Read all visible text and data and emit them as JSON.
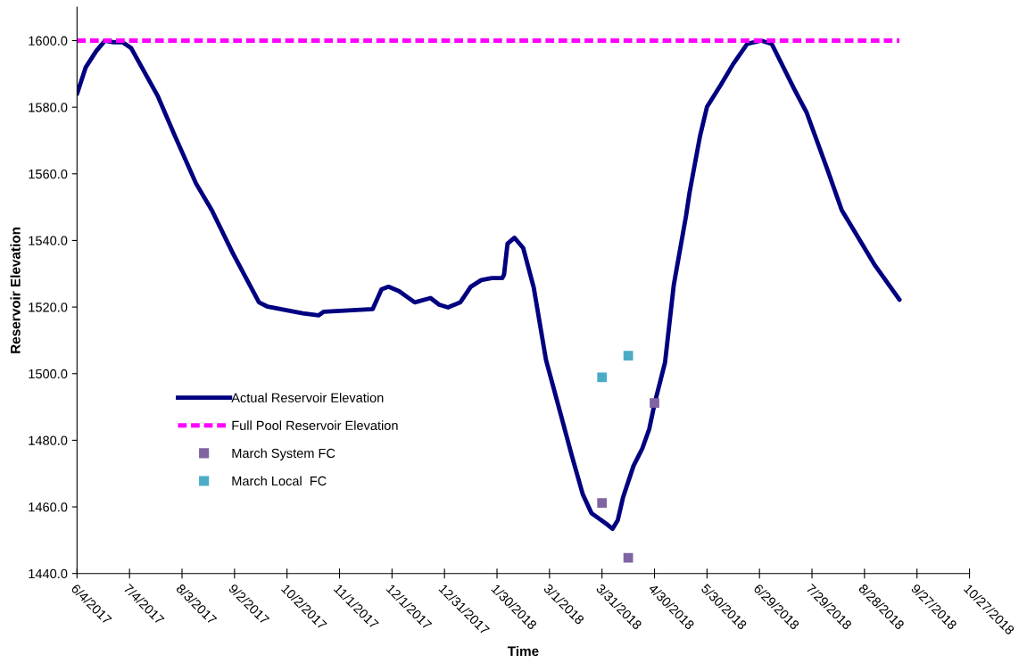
{
  "chart_data": {
    "type": "line",
    "xlabel": "Time",
    "ylabel": "Reservoir Elevation",
    "xlim": [
      "2017-06-04",
      "2018-10-27"
    ],
    "xticks": [
      {
        "value": "2017-06-04",
        "label": "6/4/2017"
      },
      {
        "value": "2017-07-04",
        "label": "7/4/2017"
      },
      {
        "value": "2017-08-03",
        "label": "8/3/2017"
      },
      {
        "value": "2017-09-02",
        "label": "9/2/2017"
      },
      {
        "value": "2017-10-02",
        "label": "10/2/2017"
      },
      {
        "value": "2017-11-01",
        "label": "11/1/2017"
      },
      {
        "value": "2017-12-01",
        "label": "12/1/2017"
      },
      {
        "value": "2017-12-31",
        "label": "12/31/2017"
      },
      {
        "value": "2018-01-30",
        "label": "1/30/2018"
      },
      {
        "value": "2018-03-01",
        "label": "3/1/2018"
      },
      {
        "value": "2018-03-31",
        "label": "3/31/2018"
      },
      {
        "value": "2018-04-30",
        "label": "4/30/2018"
      },
      {
        "value": "2018-05-30",
        "label": "5/30/2018"
      },
      {
        "value": "2018-06-29",
        "label": "6/29/2018"
      },
      {
        "value": "2018-07-29",
        "label": "7/29/2018"
      },
      {
        "value": "2018-08-28",
        "label": "8/28/2018"
      },
      {
        "value": "2018-09-27",
        "label": "9/27/2018"
      },
      {
        "value": "2018-10-27",
        "label": "10/27/2018"
      }
    ],
    "ylim": [
      1440,
      1610
    ],
    "yticks": [
      {
        "value": 1440,
        "label": "1440.0"
      },
      {
        "value": 1460,
        "label": "1460.0"
      },
      {
        "value": 1480,
        "label": "1480.0"
      },
      {
        "value": 1500,
        "label": "1500.0"
      },
      {
        "value": 1520,
        "label": "1520.0"
      },
      {
        "value": 1540,
        "label": "1540.0"
      },
      {
        "value": 1560,
        "label": "1560.0"
      },
      {
        "value": 1580,
        "label": "1580.0"
      },
      {
        "value": 1600,
        "label": "1600.0"
      }
    ],
    "grid": false,
    "legend": "lower left",
    "series": [
      {
        "name": "Actual Reservoir Elevation",
        "color": "#000080",
        "line_style": "solid",
        "marker": "none",
        "x": [
          "2017-06-04",
          "2017-06-09",
          "2017-06-15",
          "2017-06-20",
          "2017-06-25",
          "2017-06-30",
          "2017-07-05",
          "2017-07-11",
          "2017-07-20",
          "2017-07-30",
          "2017-08-11",
          "2017-08-20",
          "2017-09-01",
          "2017-09-16",
          "2017-09-21",
          "2017-10-11",
          "2017-10-20",
          "2017-10-23",
          "2017-11-20",
          "2017-11-25",
          "2017-11-29",
          "2017-12-05",
          "2017-12-14",
          "2017-12-23",
          "2017-12-28",
          "2018-01-02",
          "2018-01-09",
          "2018-01-15",
          "2018-01-21",
          "2018-01-27",
          "2018-02-02",
          "2018-02-03",
          "2018-02-05",
          "2018-02-09",
          "2018-02-14",
          "2018-02-20",
          "2018-02-27",
          "2018-03-07",
          "2018-03-14",
          "2018-03-20",
          "2018-03-25",
          "2018-04-03",
          "2018-04-06",
          "2018-04-09",
          "2018-04-12",
          "2018-04-18",
          "2018-04-23",
          "2018-04-27",
          "2018-04-30",
          "2018-05-06",
          "2018-05-11",
          "2018-05-18",
          "2018-05-20",
          "2018-05-26",
          "2018-05-30",
          "2018-06-07",
          "2018-06-14",
          "2018-06-22",
          "2018-06-30",
          "2018-07-06",
          "2018-07-19",
          "2018-07-26",
          "2018-08-07",
          "2018-08-15",
          "2018-09-03",
          "2018-09-17"
        ],
        "values": [
          1584.0,
          1592.0,
          1596.9,
          1600.0,
          1599.5,
          1599.5,
          1597.7,
          1592.0,
          1583.5,
          1571.3,
          1557.1,
          1549.1,
          1536.2,
          1521.4,
          1520.1,
          1518.1,
          1517.5,
          1518.6,
          1519.4,
          1525.3,
          1526.1,
          1524.8,
          1521.4,
          1522.7,
          1520.7,
          1519.9,
          1521.4,
          1526.1,
          1528.1,
          1528.7,
          1528.7,
          1529.7,
          1539.0,
          1540.8,
          1537.7,
          1525.8,
          1504.1,
          1488.6,
          1474.9,
          1463.8,
          1458.1,
          1454.7,
          1453.4,
          1456.0,
          1462.8,
          1472.3,
          1477.5,
          1483.4,
          1490.9,
          1503.3,
          1526.6,
          1547.3,
          1554.3,
          1571.3,
          1580.1,
          1586.8,
          1593.0,
          1599.0,
          1600.0,
          1599.0,
          1585.3,
          1578.3,
          1561.0,
          1549.1,
          1532.5,
          1522.2
        ]
      },
      {
        "name": "Full Pool Reservoir Elevation",
        "color": "#ff00ff",
        "line_style": "dashed",
        "marker": "none",
        "x": [
          "2017-06-04",
          "2018-09-17"
        ],
        "values": [
          1600,
          1600
        ]
      },
      {
        "name": "March System FC",
        "type": "scatter",
        "color": "#8064a2",
        "marker": "square",
        "x": [
          "2018-03-31",
          "2018-04-15",
          "2018-04-30"
        ],
        "values": [
          1461.2,
          1444.7,
          1491.2
        ]
      },
      {
        "name": "March Local  FC",
        "type": "scatter",
        "color": "#4bacc6",
        "marker": "square",
        "x": [
          "2018-03-31",
          "2018-04-15"
        ],
        "values": [
          1498.9,
          1505.4
        ]
      }
    ]
  }
}
